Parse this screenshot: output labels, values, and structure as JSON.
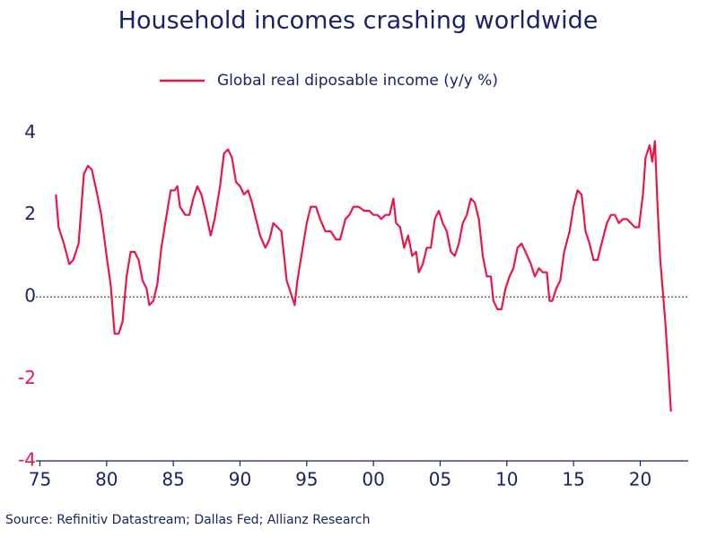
{
  "chart_data": {
    "type": "line",
    "title": "Household incomes crashing worldwide",
    "source": "Source: Refinitiv Datastream; Dallas Fed; Allianz Research",
    "xlim": [
      1974.7,
      2023.6
    ],
    "xticks": [
      {
        "value": 1975,
        "label": "75"
      },
      {
        "value": 1980,
        "label": "80"
      },
      {
        "value": 1985,
        "label": "85"
      },
      {
        "value": 1990,
        "label": "90"
      },
      {
        "value": 1995,
        "label": "95"
      },
      {
        "value": 2000,
        "label": "00"
      },
      {
        "value": 2005,
        "label": "05"
      },
      {
        "value": 2010,
        "label": "10"
      },
      {
        "value": 2015,
        "label": "15"
      },
      {
        "value": 2020,
        "label": "20"
      }
    ],
    "ylim": [
      -4,
      4.4
    ],
    "yticks": [
      4,
      2,
      0,
      -2,
      -4
    ],
    "negative_tick_color": "#e8174a",
    "zero_line": true,
    "x": [
      1976.2,
      1976.4,
      1976.8,
      1977.2,
      1977.5,
      1977.9,
      1978.3,
      1978.6,
      1978.9,
      1979.3,
      1979.6,
      1980.0,
      1980.3,
      1980.6,
      1980.9,
      1981.2,
      1981.5,
      1981.8,
      1982.1,
      1982.4,
      1982.7,
      1983.0,
      1983.2,
      1983.5,
      1983.8,
      1984.1,
      1984.5,
      1984.8,
      1985.1,
      1985.3,
      1985.5,
      1985.9,
      1986.2,
      1986.5,
      1986.8,
      1987.1,
      1987.4,
      1987.8,
      1988.1,
      1988.5,
      1988.8,
      1989.1,
      1989.4,
      1989.7,
      1990.0,
      1990.3,
      1990.6,
      1990.9,
      1991.2,
      1991.5,
      1991.9,
      1992.2,
      1992.5,
      1992.8,
      1993.1,
      1993.5,
      1993.8,
      1994.1,
      1994.3,
      1994.7,
      1995.0,
      1995.3,
      1995.7,
      1996.0,
      1996.4,
      1996.8,
      1997.2,
      1997.5,
      1997.9,
      1998.2,
      1998.5,
      1998.9,
      1999.3,
      1999.7,
      2000.0,
      2000.3,
      2000.6,
      2000.9,
      2001.2,
      2001.5,
      2001.7,
      2002.0,
      2002.3,
      2002.6,
      2002.9,
      2003.2,
      2003.4,
      2003.7,
      2004.0,
      2004.3,
      2004.6,
      2004.9,
      2005.2,
      2005.5,
      2005.8,
      2006.1,
      2006.4,
      2006.7,
      2007.0,
      2007.3,
      2007.6,
      2007.9,
      2008.2,
      2008.5,
      2008.8,
      2009.0,
      2009.3,
      2009.6,
      2009.9,
      2010.2,
      2010.5,
      2010.8,
      2011.1,
      2011.4,
      2011.8,
      2012.1,
      2012.4,
      2012.7,
      2013.0,
      2013.2,
      2013.4,
      2013.7,
      2014.0,
      2014.3,
      2014.7,
      2015.0,
      2015.3,
      2015.6,
      2015.9,
      2016.2,
      2016.5,
      2016.8,
      2017.1,
      2017.5,
      2017.8,
      2018.1,
      2018.4,
      2018.7,
      2019.0,
      2019.3,
      2019.6,
      2019.9,
      2020.2,
      2020.4,
      2020.7,
      2020.9,
      2021.1,
      2021.3,
      2021.5,
      2021.7,
      2021.9,
      2022.1,
      2022.3
    ],
    "series": [
      {
        "name": "Global real diposable income (y/y %)",
        "color": "#e8174a",
        "values": [
          2.5,
          1.7,
          1.3,
          0.8,
          0.9,
          1.3,
          3.0,
          3.2,
          3.1,
          2.5,
          2.0,
          1.0,
          0.3,
          -0.9,
          -0.9,
          -0.6,
          0.5,
          1.1,
          1.1,
          0.9,
          0.4,
          0.2,
          -0.2,
          -0.1,
          0.3,
          1.2,
          2.0,
          2.6,
          2.6,
          2.7,
          2.2,
          2.0,
          2.0,
          2.4,
          2.7,
          2.5,
          2.1,
          1.5,
          1.9,
          2.7,
          3.5,
          3.6,
          3.4,
          2.8,
          2.7,
          2.5,
          2.6,
          2.3,
          1.9,
          1.5,
          1.2,
          1.4,
          1.8,
          1.7,
          1.6,
          0.4,
          0.1,
          -0.2,
          0.4,
          1.2,
          1.8,
          2.2,
          2.2,
          1.9,
          1.6,
          1.6,
          1.4,
          1.4,
          1.9,
          2.0,
          2.2,
          2.2,
          2.1,
          2.1,
          2.0,
          2.0,
          1.9,
          2.0,
          2.0,
          2.4,
          1.8,
          1.7,
          1.2,
          1.5,
          1.0,
          1.1,
          0.6,
          0.8,
          1.2,
          1.2,
          1.9,
          2.1,
          1.8,
          1.6,
          1.1,
          1.0,
          1.3,
          1.8,
          2.0,
          2.4,
          2.3,
          1.9,
          1.0,
          0.5,
          0.5,
          -0.1,
          -0.3,
          -0.3,
          0.2,
          0.5,
          0.7,
          1.2,
          1.3,
          1.1,
          0.8,
          0.5,
          0.7,
          0.6,
          0.6,
          -0.1,
          -0.1,
          0.2,
          0.4,
          1.1,
          1.6,
          2.2,
          2.6,
          2.5,
          1.6,
          1.3,
          0.9,
          0.9,
          1.3,
          1.8,
          2.0,
          2.0,
          1.8,
          1.9,
          1.9,
          1.8,
          1.7,
          1.7,
          2.5,
          3.4,
          3.7,
          3.3,
          3.8,
          2.2,
          0.9,
          0.1,
          -0.7,
          -1.7,
          -2.8
        ]
      }
    ]
  }
}
